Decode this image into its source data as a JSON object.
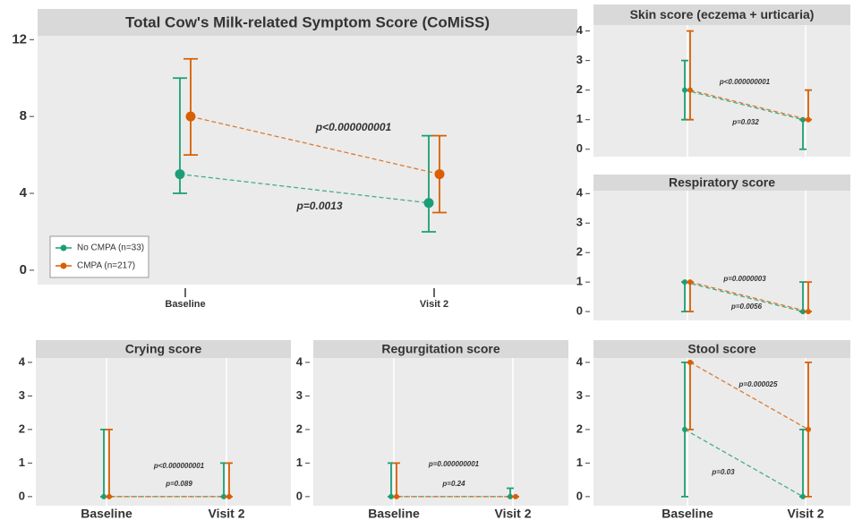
{
  "chart_data": [
    {
      "type": "errorbar",
      "title": "Total Cow's Milk-related Symptom Score (CoMiSS)",
      "categories": [
        "Baseline",
        "Visit 2"
      ],
      "ylim": [
        -0.75,
        12.2
      ],
      "yticks": [
        0,
        4,
        8,
        12
      ],
      "legend": "bottom-left",
      "series": [
        {
          "name": "No CMPA (n=33)",
          "color": "#1b9e77",
          "values": [
            5,
            3.5
          ],
          "lower": [
            4,
            2
          ],
          "upper": [
            10,
            7
          ]
        },
        {
          "name": "CMPA (n=217)",
          "color": "#d95f02",
          "values": [
            8,
            5
          ],
          "lower": [
            6,
            3
          ],
          "upper": [
            11,
            7
          ]
        }
      ],
      "annotations": [
        {
          "text": "p<0.000000001",
          "color": "#cc2a1a"
        },
        {
          "text": "p=0.0013",
          "color": "#2ea84a"
        }
      ]
    },
    {
      "type": "errorbar",
      "title": "Skin score (eczema + urticaria)",
      "ylim": [
        -0.25,
        4.2
      ],
      "yticks": [
        0,
        1,
        2,
        3,
        4
      ],
      "series": [
        {
          "color": "#1b9e77",
          "values": [
            2,
            1
          ],
          "lower": [
            1,
            0
          ],
          "upper": [
            3,
            1
          ]
        },
        {
          "color": "#d95f02",
          "values": [
            2,
            1
          ],
          "lower": [
            1,
            1
          ],
          "upper": [
            4,
            2
          ]
        }
      ],
      "annotations": [
        {
          "text": "p<0.000000001",
          "color": "#cc2a1a"
        },
        {
          "text": "p=0.032",
          "color": "#2ea84a"
        }
      ]
    },
    {
      "type": "errorbar",
      "title": "Respiratory score",
      "ylim": [
        -0.3,
        4.1
      ],
      "yticks": [
        0,
        1,
        2,
        3,
        4
      ],
      "series": [
        {
          "color": "#1b9e77",
          "values": [
            1,
            0
          ],
          "lower": [
            0,
            0
          ],
          "upper": [
            1,
            1
          ]
        },
        {
          "color": "#d95f02",
          "values": [
            1,
            0
          ],
          "lower": [
            0,
            0
          ],
          "upper": [
            1,
            1
          ]
        }
      ],
      "annotations": [
        {
          "text": "p=0.0000003",
          "color": "#cc2a1a"
        },
        {
          "text": "p=0.0056",
          "color": "#2ea84a"
        }
      ]
    },
    {
      "type": "errorbar",
      "title": "Crying score",
      "categories": [
        "Baseline",
        "Visit 2"
      ],
      "ylim": [
        -0.27,
        4.13
      ],
      "yticks": [
        0,
        1,
        2,
        3,
        4
      ],
      "series": [
        {
          "color": "#1b9e77",
          "values": [
            0,
            0
          ],
          "lower": [
            0,
            0
          ],
          "upper": [
            2,
            1
          ]
        },
        {
          "color": "#d95f02",
          "values": [
            0,
            0
          ],
          "lower": [
            0,
            0
          ],
          "upper": [
            2,
            1
          ]
        }
      ],
      "annotations": [
        {
          "text": "p<0.000000001",
          "color": "#cc2a1a"
        },
        {
          "text": "p=0.089",
          "color": "#2ea84a"
        }
      ]
    },
    {
      "type": "errorbar",
      "title": "Regurgitation score",
      "categories": [
        "Baseline",
        "Visit 2"
      ],
      "ylim": [
        -0.27,
        4.13
      ],
      "yticks": [
        0,
        1,
        2,
        3,
        4
      ],
      "series": [
        {
          "color": "#1b9e77",
          "values": [
            0,
            0
          ],
          "lower": [
            0,
            0
          ],
          "upper": [
            1,
            0.25
          ]
        },
        {
          "color": "#d95f02",
          "values": [
            0,
            0
          ],
          "lower": [
            0,
            0
          ],
          "upper": [
            1,
            0
          ]
        }
      ],
      "annotations": [
        {
          "text": "p=0.000000001",
          "color": "#cc2a1a"
        },
        {
          "text": "p=0.24",
          "color": "#2ea84a"
        }
      ]
    },
    {
      "type": "errorbar",
      "title": "Stool score",
      "categories": [
        "Baseline",
        "Visit 2"
      ],
      "ylim": [
        -0.27,
        4.13
      ],
      "yticks": [
        0,
        1,
        2,
        3,
        4
      ],
      "series": [
        {
          "color": "#1b9e77",
          "values": [
            2,
            0
          ],
          "lower": [
            0,
            0
          ],
          "upper": [
            4,
            2
          ]
        },
        {
          "color": "#d95f02",
          "values": [
            4,
            2
          ],
          "lower": [
            2,
            0
          ],
          "upper": [
            4,
            4
          ]
        }
      ],
      "annotations": [
        {
          "text": "p=0.000025",
          "color": "#cc2a1a"
        },
        {
          "text": "p=0.03",
          "color": "#2ea84a"
        }
      ]
    }
  ]
}
